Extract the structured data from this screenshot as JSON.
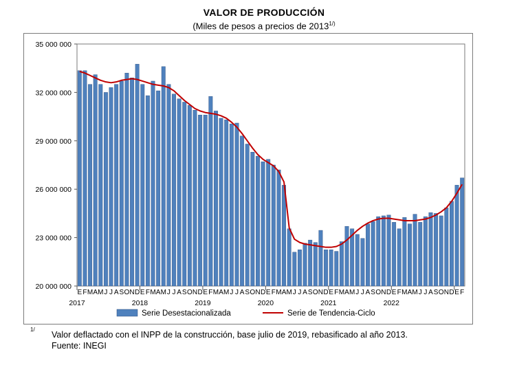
{
  "header": {
    "title": "VALOR DE PRODUCCIÓN",
    "subtitle": "(Miles de pesos a precios de 2013",
    "subtitle_sup": "1/)"
  },
  "footer": {
    "note_marker": "1/",
    "note_text": "Valor deflactado con el INPP de la construcción, base julio de 2019, rebasificado al año 2013.",
    "source_text": "Fuente:  INEGI"
  },
  "chart_data": {
    "type": "bar",
    "title": "VALOR DE PRODUCCIÓN",
    "ylim": [
      20000000,
      35000000
    ],
    "y_ticks": [
      20000000,
      23000000,
      26000000,
      29000000,
      32000000,
      35000000
    ],
    "y_tick_labels": [
      "20 000 000",
      "23 000 000",
      "26 000 000",
      "29 000 000",
      "32 000 000",
      "35 000 000"
    ],
    "month_labels": [
      "E",
      "F",
      "M",
      "A",
      "M",
      "J",
      "J",
      "A",
      "S",
      "O",
      "N",
      "D"
    ],
    "years": [
      "2017",
      "2018",
      "2019",
      "2020",
      "2021",
      "2022"
    ],
    "series": [
      {
        "name": "Serie Desestacionalizada",
        "type": "bar",
        "color": "#4f81bd",
        "values": [
          33350000,
          33350000,
          32500000,
          33100000,
          32500000,
          32000000,
          32300000,
          32500000,
          32700000,
          33200000,
          32900000,
          33750000,
          32500000,
          31800000,
          32700000,
          32100000,
          33600000,
          32500000,
          31900000,
          31600000,
          31400000,
          31200000,
          30900000,
          30600000,
          30600000,
          31750000,
          30850000,
          30400000,
          30300000,
          30050000,
          30100000,
          29300000,
          28800000,
          28300000,
          28050000,
          27700000,
          27850000,
          27500000,
          27200000,
          26250000,
          23550000,
          22100000,
          22250000,
          22650000,
          22850000,
          22700000,
          23450000,
          22250000,
          22250000,
          22150000,
          22750000,
          23700000,
          23550000,
          23200000,
          22950000,
          23850000,
          24000000,
          24300000,
          24350000,
          24400000,
          23950000,
          23550000,
          24250000,
          23850000,
          24450000,
          23950000,
          24300000,
          24550000,
          24500000,
          24350000,
          24850000,
          25250000,
          26250000,
          26700000
        ]
      },
      {
        "name": "Serie de Tendencia-Ciclo",
        "type": "line",
        "color": "#c00000",
        "values": [
          33300000,
          33200000,
          33050000,
          32900000,
          32750000,
          32650000,
          32600000,
          32650000,
          32750000,
          32800000,
          32850000,
          32800000,
          32700000,
          32600000,
          32500000,
          32450000,
          32400000,
          32300000,
          32100000,
          31800000,
          31500000,
          31250000,
          31000000,
          30850000,
          30750000,
          30700000,
          30650000,
          30550000,
          30400000,
          30150000,
          29850000,
          29450000,
          29000000,
          28550000,
          28150000,
          27850000,
          27650000,
          27450000,
          27100000,
          26450000,
          23600000,
          22900000,
          22700000,
          22600000,
          22550000,
          22500000,
          22450000,
          22400000,
          22400000,
          22450000,
          22600000,
          22850000,
          23150000,
          23450000,
          23700000,
          23900000,
          24050000,
          24150000,
          24200000,
          24200000,
          24150000,
          24100000,
          24050000,
          24050000,
          24050000,
          24100000,
          24150000,
          24250000,
          24400000,
          24600000,
          24850000,
          25250000,
          25750000,
          26300000
        ]
      }
    ],
    "legend": [
      "Serie Desestacionalizada",
      "Serie de Tendencia-Ciclo"
    ]
  }
}
